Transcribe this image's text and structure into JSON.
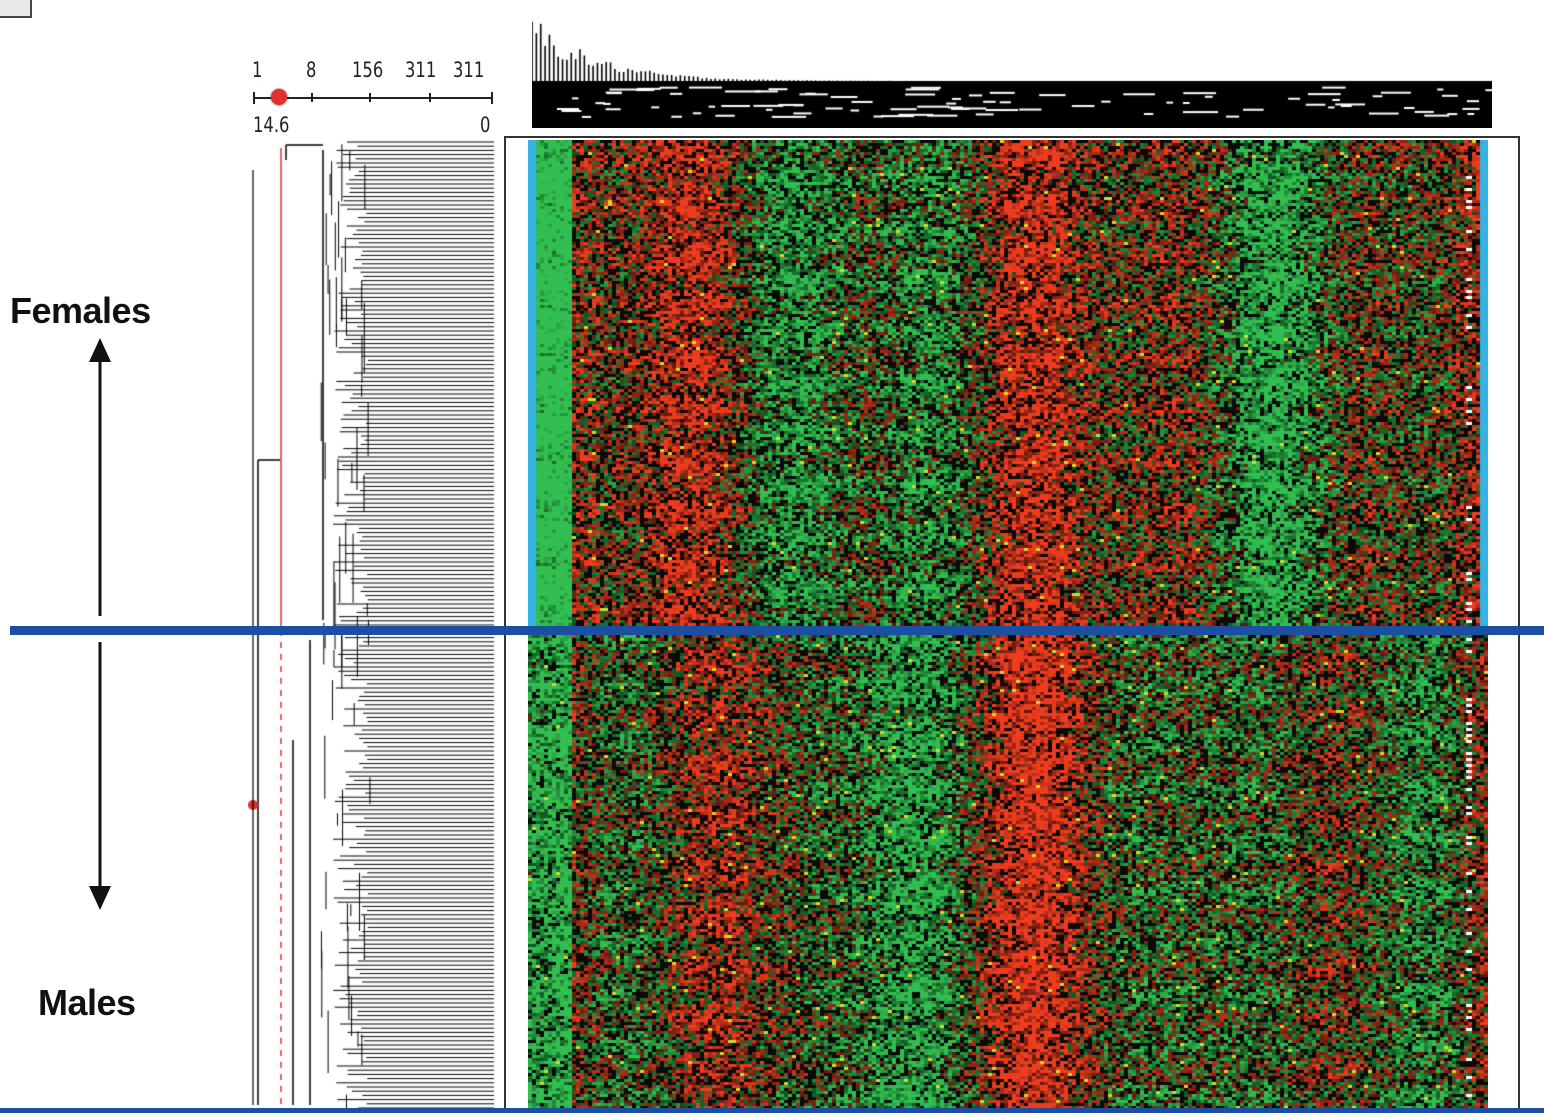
{
  "scale": {
    "top_ticks": [
      "1",
      "8",
      "156",
      "311",
      "311"
    ],
    "bottom_left": "14.6",
    "bottom_right": "0"
  },
  "groups": {
    "top": "Females",
    "bottom": "Males"
  },
  "colors": {
    "high": "#e8321e",
    "low": "#27a24a",
    "mid": "#000000",
    "marker": "#e03030",
    "divider": "#1a4fa3",
    "edge_strip": "#35b4e3",
    "dendrogram": "#000000"
  },
  "icons": {
    "arrow_up": "arrow-up-icon",
    "arrow_down": "arrow-down-icon"
  }
}
